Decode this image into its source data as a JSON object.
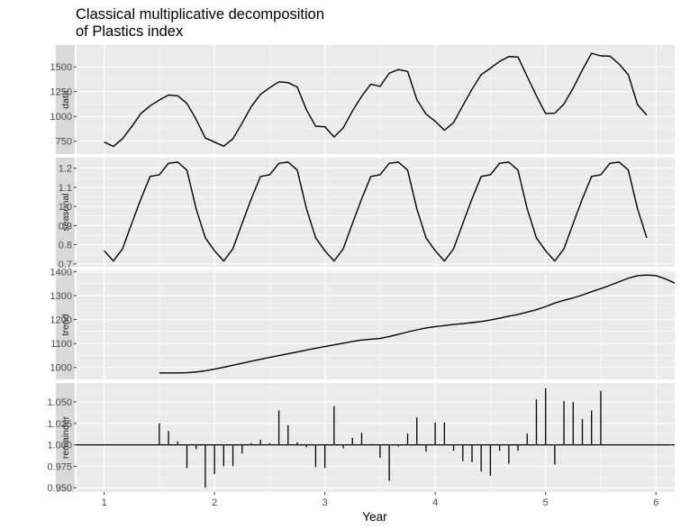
{
  "title_line1": "Classical multiplicative decomposition",
  "title_line2": "of Plastics index",
  "chart_data": {
    "type": "line",
    "title": "Classical multiplicative decomposition of Plastics index",
    "xlabel": "Year",
    "xlim": [
      0.75,
      6.17
    ],
    "x_ticks": [
      1,
      2,
      3,
      4,
      5,
      6
    ],
    "x_tick_labels": [
      "1",
      "2",
      "3",
      "4",
      "5",
      "6"
    ],
    "grid": true,
    "panels": [
      {
        "name": "data",
        "kind": "line",
        "ylim": [
          620,
          1720
        ],
        "y_ticks": [
          750,
          1000,
          1250,
          1500
        ],
        "y_tick_labels": [
          "750",
          "1000",
          "1250",
          "1500"
        ],
        "x_start": 1,
        "values": [
          742,
          697,
          776,
          898,
          1030,
          1107,
          1165,
          1216,
          1208,
          1131,
          971,
          783,
          741,
          700,
          774,
          932,
          1099,
          1223,
          1290,
          1349,
          1341,
          1296,
          1066,
          901,
          896,
          793,
          885,
          1055,
          1204,
          1326,
          1303,
          1436,
          1473,
          1454,
          1170,
          1023,
          951,
          861,
          938,
          1109,
          1274,
          1422,
          1486,
          1555,
          1604,
          1600,
          1403,
          1209,
          1030,
          1032,
          1126,
          1285,
          1468,
          1637,
          1611,
          1608,
          1528,
          1420,
          1119,
          1013
        ]
      },
      {
        "name": "seasonal",
        "kind": "line",
        "ylim": [
          0.685,
          1.255
        ],
        "y_ticks": [
          0.7,
          0.8,
          0.9,
          1.0,
          1.1,
          1.2
        ],
        "y_tick_labels": [
          "0.7",
          "0.8",
          "0.9",
          "1.0",
          "1.1",
          "1.2"
        ],
        "x_start": 1,
        "values": [
          0.769,
          0.715,
          0.779,
          0.911,
          1.04,
          1.157,
          1.166,
          1.226,
          1.232,
          1.19,
          0.988,
          0.836
        ]
      },
      {
        "name": "trend",
        "kind": "line",
        "ylim": [
          950,
          1405
        ],
        "y_ticks": [
          1000,
          1100,
          1200,
          1300,
          1400
        ],
        "y_tick_labels": [
          "1000",
          "1100",
          "1200",
          "1300",
          "1400"
        ],
        "x_start": 1.5,
        "values": [
          976.9,
          977.0,
          977.0,
          978.0,
          981.0,
          986.0,
          992.8,
          1000.6,
          1008.9,
          1017.4,
          1025.8,
          1034.1,
          1042.0,
          1049.5,
          1057.0,
          1064.4,
          1072.3,
          1079.9,
          1086.8,
          1094.2,
          1100.9,
          1108.2,
          1114.3,
          1117.5,
          1121.0,
          1129.0,
          1138.2,
          1147.9,
          1156.8,
          1164.4,
          1170.1,
          1174.4,
          1179.1,
          1182.8,
          1186.9,
          1191.2,
          1197.8,
          1205.6,
          1214.0,
          1221.0,
          1231.0,
          1240.8,
          1253.6,
          1268.5,
          1280.2,
          1290.2,
          1302.0,
          1316.0,
          1328.7,
          1342.5,
          1357.6,
          1372.2,
          1382.5,
          1385.6,
          1383.0,
          1370.0,
          1353.0,
          1334.0
        ]
      },
      {
        "name": "remainder",
        "kind": "bar",
        "baseline": 1.0,
        "ylim": [
          0.945,
          1.072
        ],
        "y_ticks": [
          0.95,
          0.975,
          1.0,
          1.025,
          1.05
        ],
        "y_tick_labels": [
          "0.950",
          "0.975",
          "1.000",
          "1.025",
          "1.050"
        ],
        "x_start": 1.5,
        "values": [
          1.025,
          1.016,
          1.004,
          0.973,
          0.995,
          0.95,
          0.966,
          0.975,
          0.975,
          0.99,
          1.002,
          1.006,
          1.002,
          1.04,
          1.023,
          1.003,
          0.997,
          0.974,
          0.973,
          1.045,
          0.996,
          1.008,
          1.014,
          1.001,
          0.985,
          0.958,
          0.998,
          1.013,
          1.032,
          0.992,
          1.026,
          1.026,
          0.993,
          0.981,
          0.98,
          0.969,
          0.964,
          0.993,
          0.978,
          0.993,
          1.013,
          1.053,
          1.066,
          0.977,
          1.051,
          1.05,
          1.03,
          1.04,
          1.063
        ]
      }
    ]
  }
}
